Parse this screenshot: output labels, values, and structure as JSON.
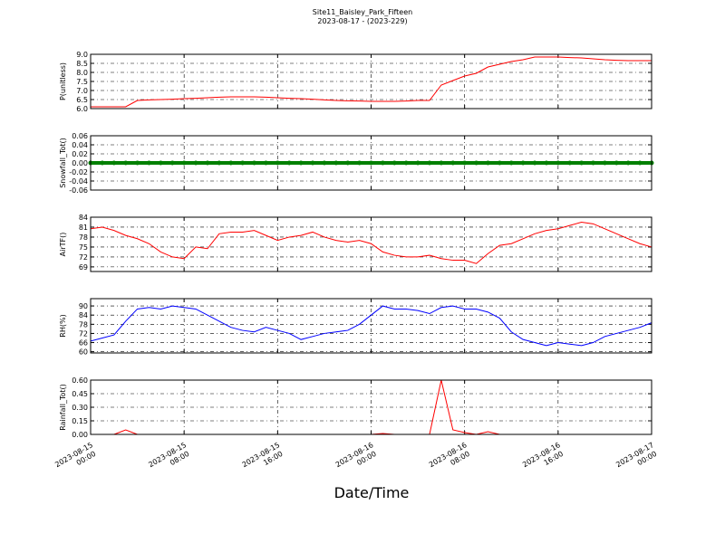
{
  "chart_data": {
    "type": "line",
    "title": "Site11_Baisley_Park_Fifteen",
    "subtitle": "2023-08-17 - (2023-229)",
    "xlabel": "Date/Time",
    "x": [
      "2023-08-15 00:00",
      "2023-08-15 01:00",
      "2023-08-15 02:00",
      "2023-08-15 03:00",
      "2023-08-15 04:00",
      "2023-08-15 05:00",
      "2023-08-15 06:00",
      "2023-08-15 07:00",
      "2023-08-15 08:00",
      "2023-08-15 09:00",
      "2023-08-15 10:00",
      "2023-08-15 11:00",
      "2023-08-15 12:00",
      "2023-08-15 13:00",
      "2023-08-15 14:00",
      "2023-08-15 15:00",
      "2023-08-15 16:00",
      "2023-08-15 17:00",
      "2023-08-15 18:00",
      "2023-08-15 19:00",
      "2023-08-15 20:00",
      "2023-08-15 21:00",
      "2023-08-15 22:00",
      "2023-08-15 23:00",
      "2023-08-16 00:00",
      "2023-08-16 01:00",
      "2023-08-16 02:00",
      "2023-08-16 03:00",
      "2023-08-16 04:00",
      "2023-08-16 05:00",
      "2023-08-16 06:00",
      "2023-08-16 07:00",
      "2023-08-16 08:00",
      "2023-08-16 09:00",
      "2023-08-16 10:00",
      "2023-08-16 11:00",
      "2023-08-16 12:00",
      "2023-08-16 13:00",
      "2023-08-16 14:00",
      "2023-08-16 15:00",
      "2023-08-16 16:00",
      "2023-08-16 17:00",
      "2023-08-16 18:00",
      "2023-08-16 19:00",
      "2023-08-16 20:00",
      "2023-08-16 21:00",
      "2023-08-16 22:00",
      "2023-08-16 23:00",
      "2023-08-17 00:00"
    ],
    "xlim": [
      "2023-08-15 00:00",
      "2023-08-17 00:00"
    ],
    "xticks": [
      "2023-08-15 00:00",
      "2023-08-15 08:00",
      "2023-08-15 16:00",
      "2023-08-16 00:00",
      "2023-08-16 08:00",
      "2023-08-16 16:00",
      "2023-08-17 00:00"
    ],
    "grid": true,
    "panels": [
      {
        "ylabel": "P(unitless)",
        "color": "#ff0000",
        "values": [
          6.1,
          6.1,
          6.1,
          6.1,
          6.45,
          6.48,
          6.5,
          6.52,
          6.55,
          6.57,
          6.6,
          6.63,
          6.65,
          6.65,
          6.65,
          6.63,
          6.6,
          6.57,
          6.55,
          6.52,
          6.48,
          6.45,
          6.43,
          6.42,
          6.4,
          6.4,
          6.4,
          6.42,
          6.45,
          6.45,
          7.3,
          7.55,
          7.8,
          7.95,
          8.3,
          8.45,
          8.6,
          8.7,
          8.85,
          8.85,
          8.85,
          8.82,
          8.8,
          8.75,
          8.7,
          8.67,
          8.65,
          8.65,
          8.65
        ],
        "ylim": [
          6,
          9
        ],
        "yticks": [
          {
            "value": 6,
            "label": "6.0"
          },
          {
            "value": 6.5,
            "label": "6.5"
          },
          {
            "value": 7,
            "label": "7.0"
          },
          {
            "value": 7.5,
            "label": "7.5"
          },
          {
            "value": 8,
            "label": "8.0"
          },
          {
            "value": 8.5,
            "label": "8.5"
          },
          {
            "value": 9,
            "label": "9.0"
          }
        ]
      },
      {
        "ylabel": "Snowfall_Tot()",
        "color": "#008000",
        "marker": "o",
        "values": [
          0,
          0,
          0,
          0,
          0,
          0,
          0,
          0,
          0,
          0,
          0,
          0,
          0,
          0,
          0,
          0,
          0,
          0,
          0,
          0,
          0,
          0,
          0,
          0,
          0,
          0,
          0,
          0,
          0,
          0,
          0,
          0,
          0,
          0,
          0,
          0,
          0,
          0,
          0,
          0,
          0,
          0,
          0,
          0,
          0,
          0,
          0,
          0,
          0
        ],
        "ylim": [
          -0.06,
          0.06
        ],
        "yticks": [
          {
            "value": -0.06,
            "label": "-0.06"
          },
          {
            "value": -0.04,
            "label": "-0.04"
          },
          {
            "value": -0.02,
            "label": "-0.02"
          },
          {
            "value": 0,
            "label": "0.00"
          },
          {
            "value": 0.02,
            "label": "0.02"
          },
          {
            "value": 0.04,
            "label": "0.04"
          },
          {
            "value": 0.06,
            "label": "0.06"
          }
        ]
      },
      {
        "ylabel": "AirTF()",
        "color": "#ff0000",
        "values": [
          80.5,
          81,
          80,
          78.5,
          77.5,
          76,
          73.5,
          72,
          71.5,
          75,
          74.5,
          79,
          79.5,
          79.5,
          80,
          78.5,
          77,
          78,
          78.5,
          79.5,
          78,
          77,
          76.5,
          77,
          76,
          73.5,
          72.5,
          72,
          72,
          72.5,
          71.5,
          71,
          71,
          70,
          73,
          75.5,
          76,
          77.5,
          79,
          80,
          80.5,
          81.5,
          82.5,
          82,
          80.5,
          79,
          77.5,
          76,
          75
        ],
        "ylim": [
          67.6,
          84
        ],
        "yticks": [
          69,
          72,
          75,
          78,
          81,
          84
        ]
      },
      {
        "ylabel": "RH(%)",
        "color": "#0000ff",
        "values": [
          67,
          69,
          71,
          80,
          88,
          89,
          88,
          90,
          89,
          88,
          84,
          80,
          76,
          74,
          73,
          76,
          74,
          72,
          68,
          70,
          72,
          73,
          74,
          78,
          84,
          90,
          88,
          88,
          87,
          85,
          89,
          90,
          88,
          88,
          86,
          82,
          73,
          68,
          66,
          64,
          66,
          65,
          64,
          66,
          70,
          72,
          74,
          76,
          79
        ],
        "ylim": [
          59.2,
          94.8
        ],
        "yticks": [
          60,
          66,
          72,
          78,
          84,
          90
        ]
      },
      {
        "ylabel": "Rainfall_Tot()",
        "color": "#ff0000",
        "values": [
          0,
          0,
          0,
          0.05,
          0,
          0,
          0,
          0,
          0,
          0,
          0,
          0,
          0,
          0,
          0,
          0,
          0,
          0,
          0,
          0,
          0,
          0,
          0,
          0,
          0,
          0.01,
          0,
          0,
          0,
          0,
          0.6,
          0.05,
          0.02,
          0,
          0.03,
          0,
          0,
          0,
          0,
          0,
          0,
          0,
          0,
          0,
          0,
          0,
          0,
          0,
          0
        ],
        "ylim": [
          0,
          0.6
        ],
        "yticks": [
          {
            "value": 0,
            "label": "0.00"
          },
          {
            "value": 0.15,
            "label": "0.15"
          },
          {
            "value": 0.3,
            "label": "0.30"
          },
          {
            "value": 0.45,
            "label": "0.45"
          },
          {
            "value": 0.6,
            "label": "0.60"
          }
        ]
      }
    ]
  }
}
